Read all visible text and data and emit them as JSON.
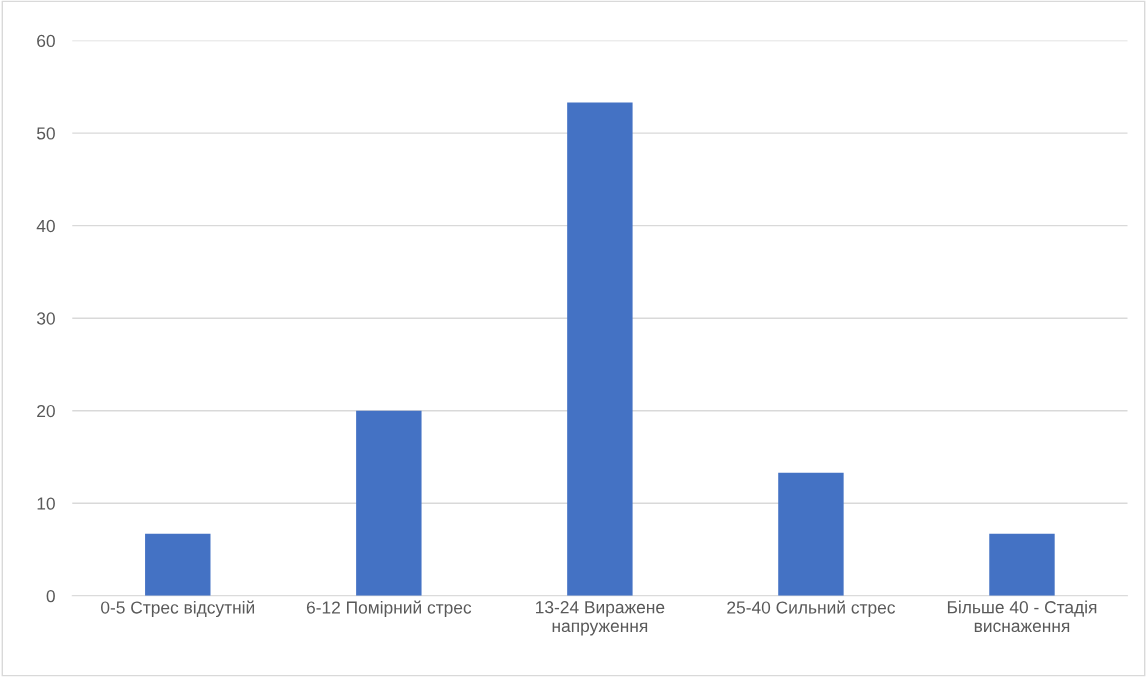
{
  "chart_data": {
    "type": "bar",
    "categories": [
      "0-5 Стрес відсутній",
      "6-12 Помірний стрес",
      "13-24 Виражене\nнапруження",
      "25-40 Сильний стрес",
      "Більше 40 - Стадія\nвиснаження"
    ],
    "values": [
      6.7,
      20,
      53.3,
      13.3,
      6.7
    ],
    "color": "#4472c4",
    "ylim": [
      0,
      60
    ],
    "yticks": [
      0,
      10,
      20,
      30,
      40,
      50,
      60
    ],
    "grid": "y"
  }
}
